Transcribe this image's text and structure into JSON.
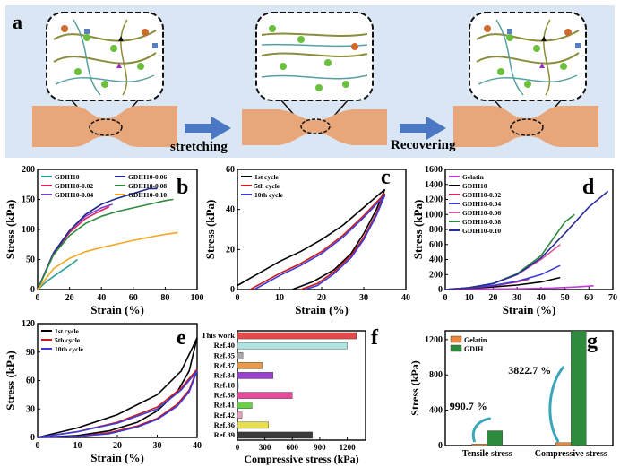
{
  "panel_a": {
    "letter": "a",
    "stretch_label": "stretching",
    "recover_label": "Recovering"
  },
  "colors": {
    "panel_a_bg": "#dbe6f4",
    "sample": "#e8a77a",
    "arrow": "#4a78c4",
    "fiber": "#8c8c3c",
    "network": "#5aa0a0",
    "dot_green": "#6abf3c",
    "dot_orange": "#d06a2c"
  },
  "chart_data": [
    {
      "panel": "b",
      "type": "line",
      "xlabel": "Strain (%)",
      "ylabel": "Stress (kPa)",
      "xlim": [
        0,
        100
      ],
      "ylim": [
        0,
        200
      ],
      "xticks": [
        0,
        20,
        40,
        60,
        80,
        100
      ],
      "yticks": [
        0,
        50,
        100,
        150,
        200
      ],
      "legend_position": "top-left",
      "legend_columns": 2,
      "series": [
        {
          "name": "GDIH10",
          "color": "#2aa198",
          "points": [
            [
              0,
              0
            ],
            [
              5,
              12
            ],
            [
              10,
              22
            ],
            [
              15,
              31
            ],
            [
              20,
              40
            ],
            [
              25,
              50
            ]
          ]
        },
        {
          "name": "GDIH10-0.02",
          "color": "#e0245e",
          "points": [
            [
              0,
              0
            ],
            [
              10,
              60
            ],
            [
              20,
              95
            ],
            [
              30,
              118
            ],
            [
              40,
              132
            ],
            [
              45,
              138
            ]
          ]
        },
        {
          "name": "GDIH10-0.04",
          "color": "#7a3fd0",
          "points": [
            [
              0,
              0
            ],
            [
              10,
              62
            ],
            [
              20,
              98
            ],
            [
              30,
              122
            ],
            [
              40,
              136
            ],
            [
              47,
              142
            ]
          ]
        },
        {
          "name": "GDIH10-0.06",
          "color": "#1f2a8a",
          "points": [
            [
              0,
              0
            ],
            [
              10,
              60
            ],
            [
              20,
              98
            ],
            [
              30,
              125
            ],
            [
              40,
              142
            ],
            [
              50,
              152
            ],
            [
              60,
              160
            ],
            [
              70,
              168
            ],
            [
              75,
              168
            ]
          ]
        },
        {
          "name": "GDIH10-0.08",
          "color": "#2e8b3e",
          "points": [
            [
              0,
              0
            ],
            [
              10,
              58
            ],
            [
              20,
              90
            ],
            [
              30,
              110
            ],
            [
              40,
              122
            ],
            [
              50,
              130
            ],
            [
              60,
              136
            ],
            [
              70,
              142
            ],
            [
              80,
              148
            ],
            [
              85,
              150
            ]
          ]
        },
        {
          "name": "GDIH10-0.10",
          "color": "#f5a623",
          "points": [
            [
              0,
              0
            ],
            [
              10,
              35
            ],
            [
              20,
              52
            ],
            [
              30,
              63
            ],
            [
              40,
              70
            ],
            [
              50,
              76
            ],
            [
              60,
              82
            ],
            [
              70,
              87
            ],
            [
              80,
              92
            ],
            [
              88,
              95
            ]
          ]
        }
      ]
    },
    {
      "panel": "c",
      "type": "line",
      "xlabel": "Strain (%)",
      "ylabel": "Stress (kPa)",
      "xlim": [
        0,
        40
      ],
      "ylim": [
        0,
        60
      ],
      "xticks": [
        0,
        10,
        20,
        30,
        40
      ],
      "yticks": [
        0,
        20,
        40,
        60
      ],
      "legend_position": "top-left",
      "series": [
        {
          "name": "1st cycle",
          "color": "#000000",
          "points": [
            [
              0,
              2
            ],
            [
              5,
              8
            ],
            [
              10,
              14
            ],
            [
              15,
              19
            ],
            [
              20,
              25
            ],
            [
              25,
              32
            ],
            [
              30,
              41
            ],
            [
              35,
              50
            ],
            [
              33,
              40
            ],
            [
              30,
              28
            ],
            [
              27,
              18
            ],
            [
              23,
              10
            ],
            [
              18,
              4
            ],
            [
              13,
              0
            ]
          ]
        },
        {
          "name": "5th cycle",
          "color": "#cc1b1b",
          "points": [
            [
              3,
              0
            ],
            [
              10,
              8
            ],
            [
              15,
              13
            ],
            [
              20,
              19
            ],
            [
              25,
              27
            ],
            [
              30,
              37
            ],
            [
              35,
              48
            ],
            [
              33,
              38
            ],
            [
              30,
              26
            ],
            [
              27,
              17
            ],
            [
              23,
              9
            ],
            [
              19,
              3
            ],
            [
              15,
              0
            ]
          ]
        },
        {
          "name": "10th cycle",
          "color": "#3b3bd9",
          "points": [
            [
              4,
              0
            ],
            [
              10,
              7
            ],
            [
              15,
              12
            ],
            [
              20,
              18
            ],
            [
              25,
              26
            ],
            [
              30,
              36
            ],
            [
              35,
              47
            ],
            [
              33,
              37
            ],
            [
              30,
              25
            ],
            [
              27,
              16
            ],
            [
              23,
              8
            ],
            [
              19,
              2
            ],
            [
              16,
              0
            ]
          ]
        }
      ]
    },
    {
      "panel": "d",
      "type": "line",
      "xlabel": "Strain (%)",
      "ylabel": "Stress (kPa)",
      "xlim": [
        0,
        70
      ],
      "ylim": [
        0,
        1600
      ],
      "xticks": [
        0,
        10,
        20,
        30,
        40,
        50,
        60,
        70
      ],
      "yticks": [
        0,
        200,
        400,
        600,
        800,
        1000,
        1200,
        1400,
        1600
      ],
      "legend_position": "top-left",
      "series": [
        {
          "name": "Gelatin",
          "color": "#c03cd6",
          "points": [
            [
              0,
              0
            ],
            [
              15,
              5
            ],
            [
              30,
              10
            ],
            [
              45,
              20
            ],
            [
              55,
              35
            ],
            [
              62,
              50
            ]
          ]
        },
        {
          "name": "GDIH10",
          "color": "#000000",
          "points": [
            [
              0,
              0
            ],
            [
              10,
              15
            ],
            [
              20,
              35
            ],
            [
              30,
              60
            ],
            [
              40,
              100
            ],
            [
              48,
              160
            ]
          ]
        },
        {
          "name": "GDIH10-0.02",
          "color": "#e0245e",
          "points": [
            [
              0,
              0
            ],
            [
              10,
              18
            ],
            [
              20,
              50
            ],
            [
              30,
              100
            ],
            [
              35,
              140
            ]
          ]
        },
        {
          "name": "GDIH10-0.04",
          "color": "#3b3bd9",
          "points": [
            [
              0,
              0
            ],
            [
              10,
              20
            ],
            [
              20,
              55
            ],
            [
              30,
              110
            ],
            [
              40,
              200
            ],
            [
              48,
              320
            ]
          ]
        },
        {
          "name": "GDIH10-0.06",
          "color": "#d65aa0",
          "points": [
            [
              0,
              0
            ],
            [
              10,
              25
            ],
            [
              20,
              80
            ],
            [
              30,
              200
            ],
            [
              40,
              400
            ],
            [
              48,
              600
            ]
          ]
        },
        {
          "name": "GDIH10-0.08",
          "color": "#2e8b3e",
          "points": [
            [
              0,
              0
            ],
            [
              10,
              25
            ],
            [
              20,
              80
            ],
            [
              30,
              210
            ],
            [
              40,
              450
            ],
            [
              50,
              900
            ],
            [
              54,
              1000
            ]
          ]
        },
        {
          "name": "GDIH10-0.10",
          "color": "#2b2b9a",
          "points": [
            [
              0,
              0
            ],
            [
              10,
              25
            ],
            [
              20,
              80
            ],
            [
              30,
              200
            ],
            [
              40,
              420
            ],
            [
              50,
              750
            ],
            [
              60,
              1100
            ],
            [
              68,
              1310
            ]
          ]
        }
      ]
    },
    {
      "panel": "e",
      "type": "line",
      "xlabel": "Strain (%)",
      "ylabel": "Stress (kPa)",
      "xlim": [
        0,
        40
      ],
      "ylim": [
        0,
        120
      ],
      "xticks": [
        0,
        10,
        20,
        30,
        40
      ],
      "yticks": [
        0,
        30,
        60,
        90,
        120
      ],
      "legend_position": "top-left",
      "series": [
        {
          "name": "1st cycle",
          "color": "#000000",
          "points": [
            [
              0,
              0
            ],
            [
              10,
              10
            ],
            [
              20,
              24
            ],
            [
              30,
              45
            ],
            [
              36,
              70
            ],
            [
              40,
              105
            ],
            [
              38,
              70
            ],
            [
              35,
              48
            ],
            [
              30,
              28
            ],
            [
              25,
              16
            ],
            [
              18,
              7
            ],
            [
              10,
              2
            ],
            [
              0,
              0
            ]
          ]
        },
        {
          "name": "5th cycle",
          "color": "#cc1b1b",
          "points": [
            [
              0,
              0
            ],
            [
              10,
              6
            ],
            [
              20,
              16
            ],
            [
              30,
              32
            ],
            [
              36,
              52
            ],
            [
              40,
              72
            ],
            [
              38,
              50
            ],
            [
              35,
              35
            ],
            [
              30,
              20
            ],
            [
              25,
              12
            ],
            [
              18,
              5
            ],
            [
              10,
              1
            ],
            [
              0,
              0
            ]
          ]
        },
        {
          "name": "10th cycle",
          "color": "#3b3bd9",
          "points": [
            [
              0,
              0
            ],
            [
              10,
              6
            ],
            [
              20,
              15
            ],
            [
              30,
              30
            ],
            [
              36,
              50
            ],
            [
              40,
              70
            ],
            [
              38,
              48
            ],
            [
              35,
              33
            ],
            [
              30,
              19
            ],
            [
              25,
              11
            ],
            [
              18,
              4
            ],
            [
              10,
              1
            ],
            [
              0,
              0
            ]
          ]
        }
      ]
    },
    {
      "panel": "f",
      "type": "bar",
      "orientation": "horizontal",
      "xlabel": "Compressive stress (kPa)",
      "xlim": [
        0,
        1400
      ],
      "xticks": [
        0,
        300,
        600,
        900,
        1200
      ],
      "categories": [
        "This work",
        "Ref.40",
        "Ref.35",
        "Ref.37",
        "Ref.34",
        "Ref.18",
        "Ref.38",
        "Ref.41",
        "Ref.42",
        "Ref.36",
        "Ref.39"
      ],
      "values": [
        1300,
        1200,
        60,
        270,
        390,
        10,
        600,
        160,
        50,
        340,
        820
      ],
      "colors": [
        "#e34a4a",
        "#aee3e0",
        "#a9a9a9",
        "#e89b4a",
        "#9a3fd0",
        "#4a6fd0",
        "#e84a9e",
        "#6ad04a",
        "#e8a0c0",
        "#e8e04a",
        "#3a3a3a"
      ]
    },
    {
      "panel": "g",
      "type": "bar",
      "ylabel": "Stress (kPa)",
      "ylim": [
        0,
        1300
      ],
      "yticks": [
        0,
        400,
        800,
        1200
      ],
      "categories": [
        "Tensile stress",
        "Compressive stress"
      ],
      "series": [
        {
          "name": "Gelatin",
          "color": "#e8883c",
          "values": [
            16.9,
            33.1
          ]
        },
        {
          "name": "GDIH",
          "color": "#2e8b3e",
          "values": [
            167,
            1300
          ]
        }
      ],
      "annotations": [
        "990.7 %",
        "3822.7 %"
      ],
      "legend_position": "top-left"
    }
  ]
}
